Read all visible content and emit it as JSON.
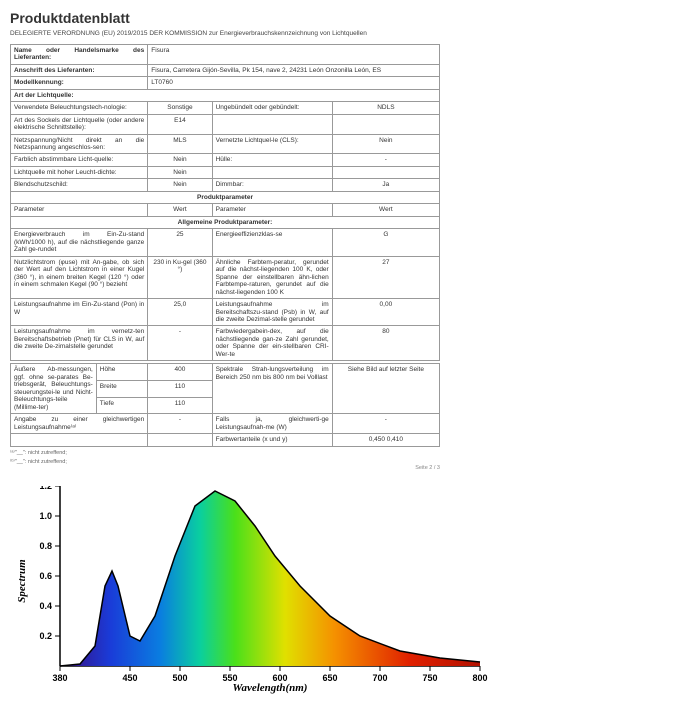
{
  "title": "Produktdatenblatt",
  "subtitle": "DELEGIERTE VERORDNUNG (EU) 2019/2015 DER KOMMISSION zur Energieverbrauchskennzeichnung von Lichtquellen",
  "rows": {
    "r1_l": "Name oder Handelsmarke des Lieferanten:",
    "r1_v": "Fisura",
    "r2_l": "Anschrift des Lieferanten:",
    "r2_v": "Fisura, Carretera Gijón-Sevilla, Pk 154, nave 2, 24231 León Onzonilla León, ES",
    "r3_l": "Modellkennung:",
    "r3_v": "LT0760",
    "art": "Art der Lichtquelle:",
    "r4_l": "Verwendete Beleuchtungstech-nologie:",
    "r4_v1": "Sonstige",
    "r4_v2": "Ungebündelt oder gebündelt:",
    "r4_v3": "NDLS",
    "r5_l": "Art des Sockels der Lichtquelle (oder andere elektrische Schnittstelle):",
    "r5_v": "E14",
    "r6_l": "Netzspannung/Nicht direkt an die Netzspannung angeschlos-sen:",
    "r6_v1": "MLS",
    "r6_v2": "Vernetzte Lichtquel-le (CLS):",
    "r6_v3": "Nein",
    "r7_l": "Farblich abstimmbare Licht-quelle:",
    "r7_v1": "Nein",
    "r7_v2": "Hülle:",
    "r7_v3": "-",
    "r8_l": "Lichtquelle mit hoher Leucht-dichte:",
    "r8_v": "Nein",
    "r9_l": "Blendschutzschild:",
    "r9_v1": "Nein",
    "r9_v2": "Dimmbar:",
    "r9_v3": "Ja",
    "pp": "Produktparameter",
    "ph1": "Parameter",
    "ph2": "Wert",
    "ph3": "Parameter",
    "ph4": "Wert",
    "apm": "Allgemeine Produktparameter:",
    "p1_l": "Energieverbrauch im Ein-Zu-stand (kWh/1000 h), auf die nächstliegende ganze Zahl ge-rundet",
    "p1_v": "25",
    "p1_r": "Energieeffizienzklas-se",
    "p1_rv": "G",
    "p2_l": "Nutzlichtstrom (φuse) mit An-gabe, ob sich der Wert auf den Lichtstrom in einer Kugel (360 °), in einem breiten Kegel (120 °) oder in einem schmalen Kegel (90 °) bezieht",
    "p2_v": "230 in Ku-gel (360 °)",
    "p2_r": "Ähnliche Farbtem-peratur, gerundet auf die nächst-liegenden 100 K, oder Spanne der einstellbaren ähn-lichen Farbtempe-raturen, gerundet auf die nächst-liegenden 100 K",
    "p2_rv": "27",
    "p3_l": "Leistungsaufnahme im Ein-Zu-stand (Pon) in W",
    "p3_v": "25,0",
    "p3_r": "Leistungsaufnahme im Bereitschaftszu-stand (Psb) in W, auf die zweite Dezimal-stelle gerundet",
    "p3_rv": "0,00",
    "p4_l": "Leistungsaufnahme im vernetz-ten Bereitschaftsbetrieb (Pnet) für CLS in W, auf die zweite De-zimalstelle gerundet",
    "p4_v": "-",
    "p4_r": "Farbwiedergabein-dex, auf die nächstliegende gan-ze Zahl gerundet, oder Spanne der ein-stellbaren CRI-Wer-te",
    "p4_rv": "80",
    "p5_l": "Äußere Ab-messungen, ggf. ohne se-parates Be-triebsgerät, Beleuchtungs-steuerungstei-le und Nicht-Beleuchtungs-teile (Millime-ter)",
    "p5_h": "Höhe",
    "p5_hv": "400",
    "p5_r": "Spektrale Strah-lungsverteilung im Bereich 250 nm bis 800 nm bei Volllast",
    "p5_rv": "Siehe Bild auf letzter Seite",
    "p5_b": "Breite",
    "p5_bv": "110",
    "p5_t": "Tiefe",
    "p5_tv": "110",
    "p6_l": "Angabe zu einer gleichwertigen Leistungsaufnahme⁽ᵃ⁾",
    "p6_v": "-",
    "p6_r": "Falls ja, gleichwerti-ge Leistungsaufnah-me (W)",
    "p6_rv": "-",
    "p7_r": "Farbwertanteile (x und y)",
    "p7_rv": "0,450 0,410"
  },
  "fn1": "⁽ᵃ⁾\"__\": nicht zutreffend;",
  "fn2": "⁽ᵇ⁾\"__\": nicht zutreffend;",
  "page": "Seite 2 / 3",
  "chart": {
    "xlabel": "Wavelength(nm)",
    "ylabel": "Spectrum",
    "xmin": 380,
    "xmax": 800,
    "ymin": 0,
    "ymax": 1.2,
    "xticks": [
      380,
      450,
      500,
      550,
      600,
      650,
      700,
      750,
      800
    ],
    "yticks": [
      "0.2",
      "0.4",
      "0.6",
      "0.8",
      "1.0",
      "1.2"
    ],
    "line": "M0,180 L20,178 L35,160 L45,100 L52,85 L58,100 L70,150 L80,155 L95,130 L115,70 L135,20 L155,5 L175,15 L195,40 L215,70 L240,100 L270,130 L300,150 L340,165 L380,172 L420,176",
    "stops": [
      {
        "o": "0%",
        "c": "#3b0a78"
      },
      {
        "o": "10%",
        "c": "#1a3bd8"
      },
      {
        "o": "20%",
        "c": "#0a7de0"
      },
      {
        "o": "28%",
        "c": "#0acf9f"
      },
      {
        "o": "35%",
        "c": "#4ae01a"
      },
      {
        "o": "45%",
        "c": "#e0e000"
      },
      {
        "o": "55%",
        "c": "#f59000"
      },
      {
        "o": "70%",
        "c": "#e02000"
      },
      {
        "o": "100%",
        "c": "#800000"
      }
    ]
  }
}
